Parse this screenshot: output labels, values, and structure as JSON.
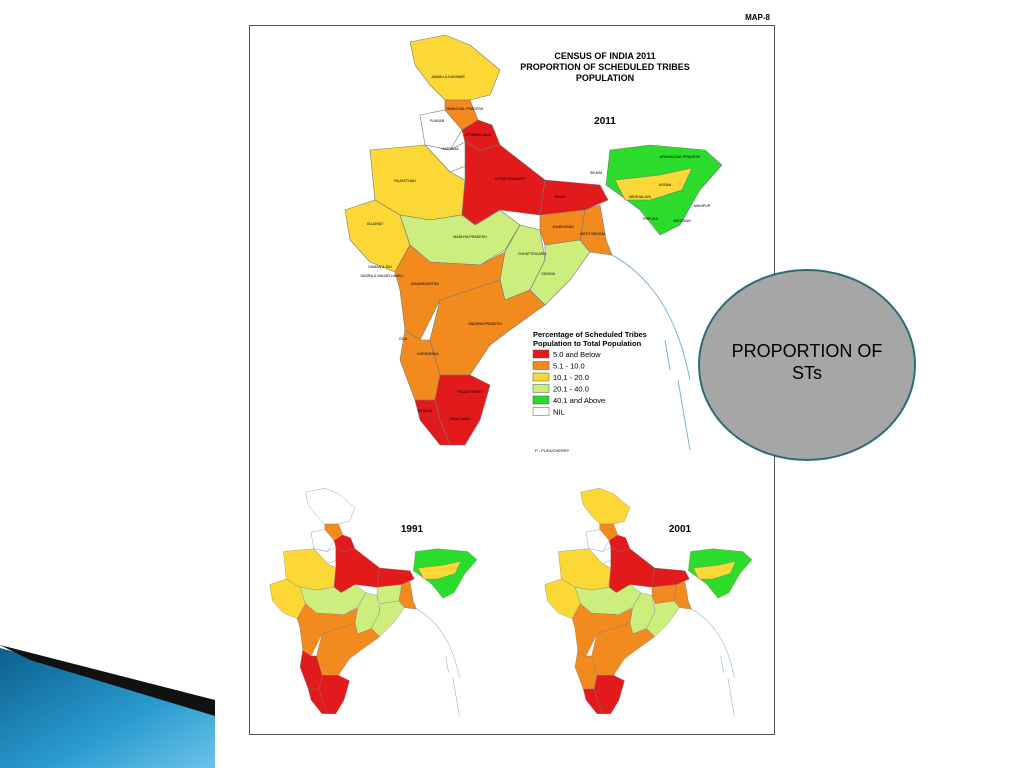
{
  "slide": {
    "callout": "PROPORTION OF STs"
  },
  "map": {
    "sheet_label": "MAP-8",
    "title": [
      "CENSUS OF INDIA 2011",
      "PROPORTION OF SCHEDULED TRIBES",
      "POPULATION"
    ],
    "main_year": "2011",
    "legend": {
      "title": [
        "Percentage of Scheduled Tribes",
        "Population  to Total Population"
      ],
      "items": [
        {
          "label": "5.0 and Below",
          "color": "#e31a1c"
        },
        {
          "label": "5.1 - 10.0",
          "color": "#f28a1e"
        },
        {
          "label": "10.1 - 20.0",
          "color": "#fbd835"
        },
        {
          "label": "20.1 - 40.0",
          "color": "#cdee7c"
        },
        {
          "label": "40.1 and Above",
          "color": "#2bdc2b"
        },
        {
          "label": "NIL",
          "color": "#ffffff"
        }
      ]
    },
    "inset_years": [
      "1991",
      "2001"
    ],
    "states": [
      "JAMMU & KASHMIR",
      "HIMACHAL PRADESH",
      "PUNJAB",
      "UTTARAKHAND",
      "HARYANA",
      "RAJASTHAN",
      "GUJARAT",
      "UTTAR PRADESH",
      "BIHAR",
      "MADHYA PRADESH",
      "MAHARASHTRA",
      "CHHATTISGARH",
      "JHARKHAND",
      "WEST BENGAL",
      "ODISHA",
      "ANDHRA PRADESH",
      "KARNATAKA",
      "TAMIL NADU",
      "KERALA",
      "ASSAM",
      "ARUNACHAL PRADESH",
      "MEGHALAYA",
      "MANIPUR",
      "TRIPURA",
      "MIZORAM",
      "SIKKIM",
      "GOA",
      "PUDUCHERRY",
      "DAMAN & DIU",
      "DADRA & NAGAR HAVELI"
    ],
    "footnote": "P - PUDUCHERRY"
  }
}
